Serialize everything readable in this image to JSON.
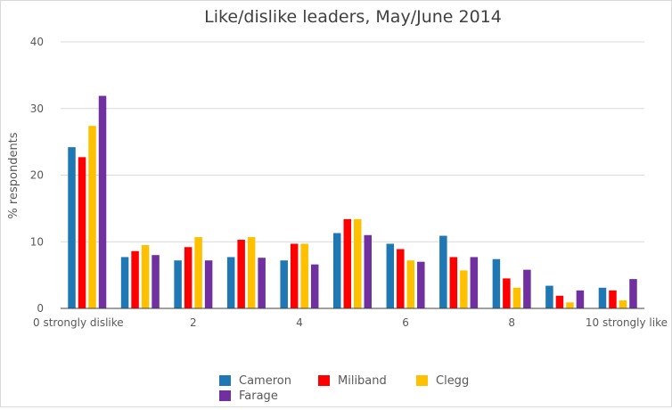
{
  "chart_data": {
    "type": "bar",
    "title": "Like/dislike leaders, May/June 2014",
    "ylabel": "% respondents",
    "xlabel": "",
    "ylim": [
      0,
      40
    ],
    "yticks": [
      "0",
      "10",
      "20",
      "30",
      "40"
    ],
    "categories": [
      "0  strongly dislike",
      "1",
      "2",
      "3",
      "4",
      "5",
      "6",
      "7",
      "8",
      "9",
      "10 strongly like"
    ],
    "xtick_labels": [
      {
        "index": 0,
        "label": "0  strongly dislike"
      },
      {
        "index": 2,
        "label": "2"
      },
      {
        "index": 4,
        "label": "4"
      },
      {
        "index": 6,
        "label": "6"
      },
      {
        "index": 8,
        "label": "8"
      },
      {
        "index": 10,
        "label": "10 strongly like"
      }
    ],
    "grid": true,
    "legend_position": "bottom",
    "series": [
      {
        "name": "Cameron",
        "color": "#1f77b4",
        "values": [
          24.2,
          7.7,
          7.2,
          7.7,
          7.2,
          11.3,
          9.7,
          10.9,
          7.4,
          3.4,
          3.1
        ]
      },
      {
        "name": "Miliband",
        "color": "#ff0000",
        "values": [
          22.7,
          8.6,
          9.2,
          10.3,
          9.7,
          13.4,
          8.9,
          7.7,
          4.5,
          1.9,
          2.7
        ]
      },
      {
        "name": "Clegg",
        "color": "#ffc000",
        "values": [
          27.4,
          9.5,
          10.7,
          10.7,
          9.7,
          13.4,
          7.2,
          5.7,
          3.1,
          0.9,
          1.2
        ]
      },
      {
        "name": "Farage",
        "color": "#7030a0",
        "values": [
          31.9,
          8.0,
          7.2,
          7.6,
          6.6,
          11.0,
          7.0,
          7.7,
          5.8,
          2.7,
          4.4
        ]
      }
    ]
  }
}
